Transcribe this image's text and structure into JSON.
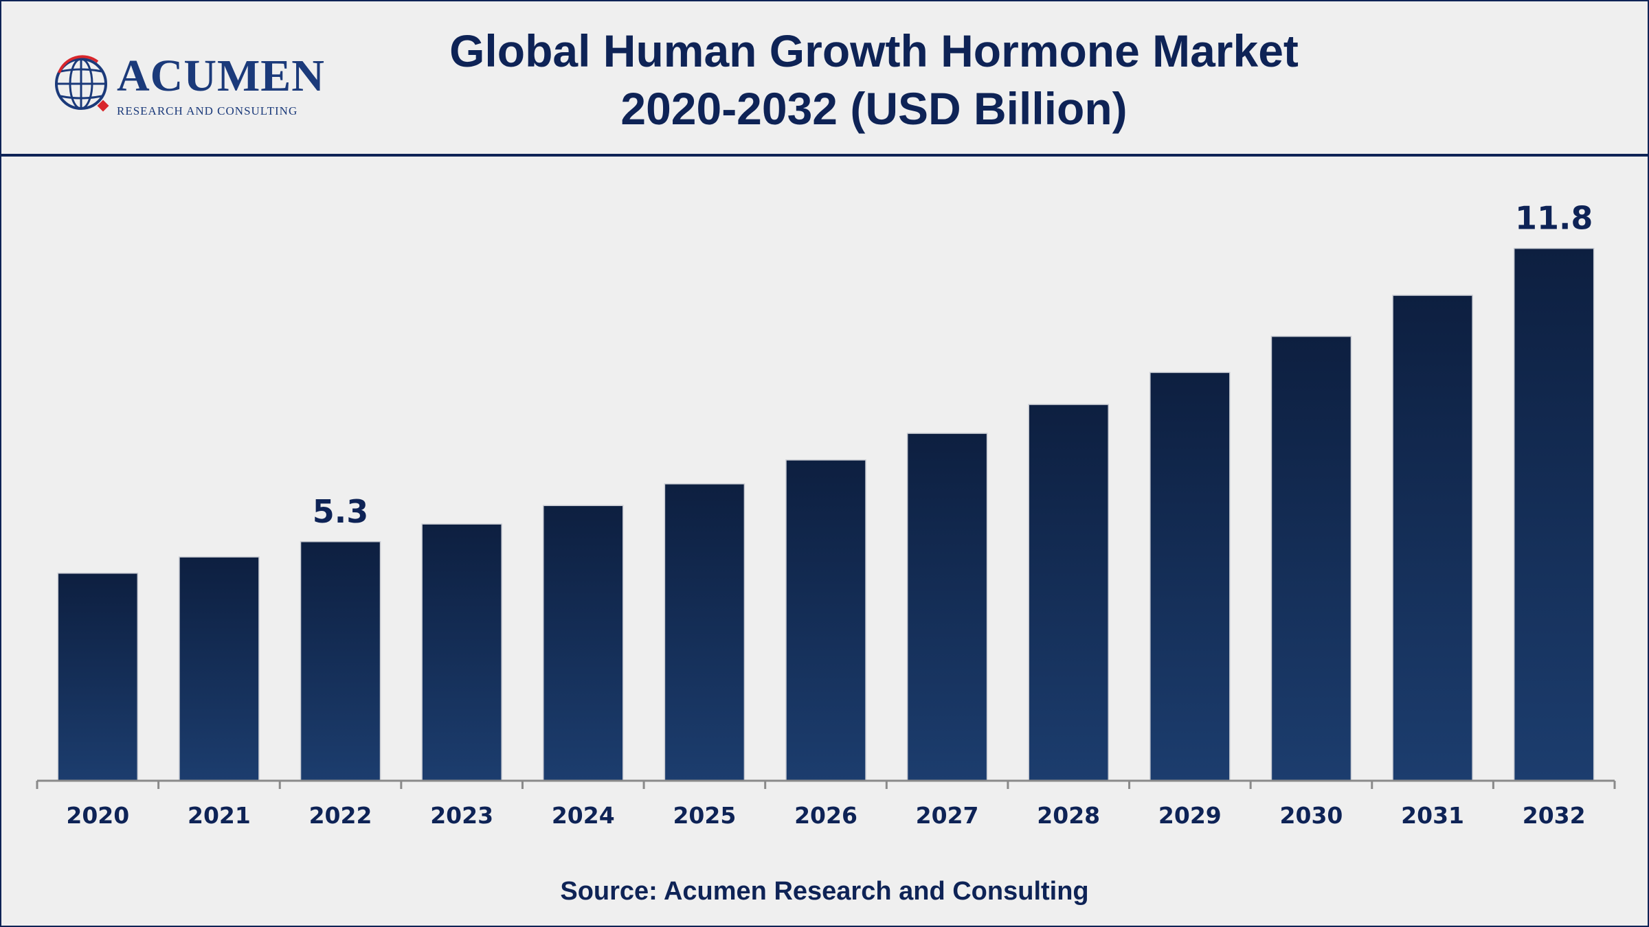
{
  "header": {
    "title_line1": "Global Human Growth Hormone Market",
    "title_line2": "2020-2032 (USD Billion)"
  },
  "logo": {
    "name": "ACUMEN",
    "tagline": "RESEARCH AND CONSULTING",
    "icon": "globe-icon"
  },
  "chart_data": {
    "type": "bar",
    "title": "Global Human Growth Hormone Market 2020-2032 (USD Billion)",
    "xlabel": "",
    "ylabel": "",
    "categories": [
      "2020",
      "2021",
      "2022",
      "2023",
      "2024",
      "2025",
      "2026",
      "2027",
      "2028",
      "2029",
      "2030",
      "2031",
      "2032"
    ],
    "values": [
      4.6,
      4.96,
      5.3,
      5.69,
      6.1,
      6.58,
      7.11,
      7.7,
      8.34,
      9.05,
      9.85,
      10.76,
      11.8
    ],
    "data_labels": [
      {
        "category": "2022",
        "text": "5.3"
      },
      {
        "category": "2032",
        "text": "11.8"
      }
    ],
    "ylim": [
      0,
      12
    ],
    "grid": false,
    "legend": "none",
    "bar_color_top": "#0d1f40",
    "bar_color_bottom": "#1c3d6e"
  },
  "footer": {
    "source": "Source: Acumen Research and Consulting"
  },
  "colors": {
    "background": "#efefef",
    "navy": "#0e2356",
    "logo_blue": "#1b3a7a",
    "logo_red": "#d8262b"
  }
}
